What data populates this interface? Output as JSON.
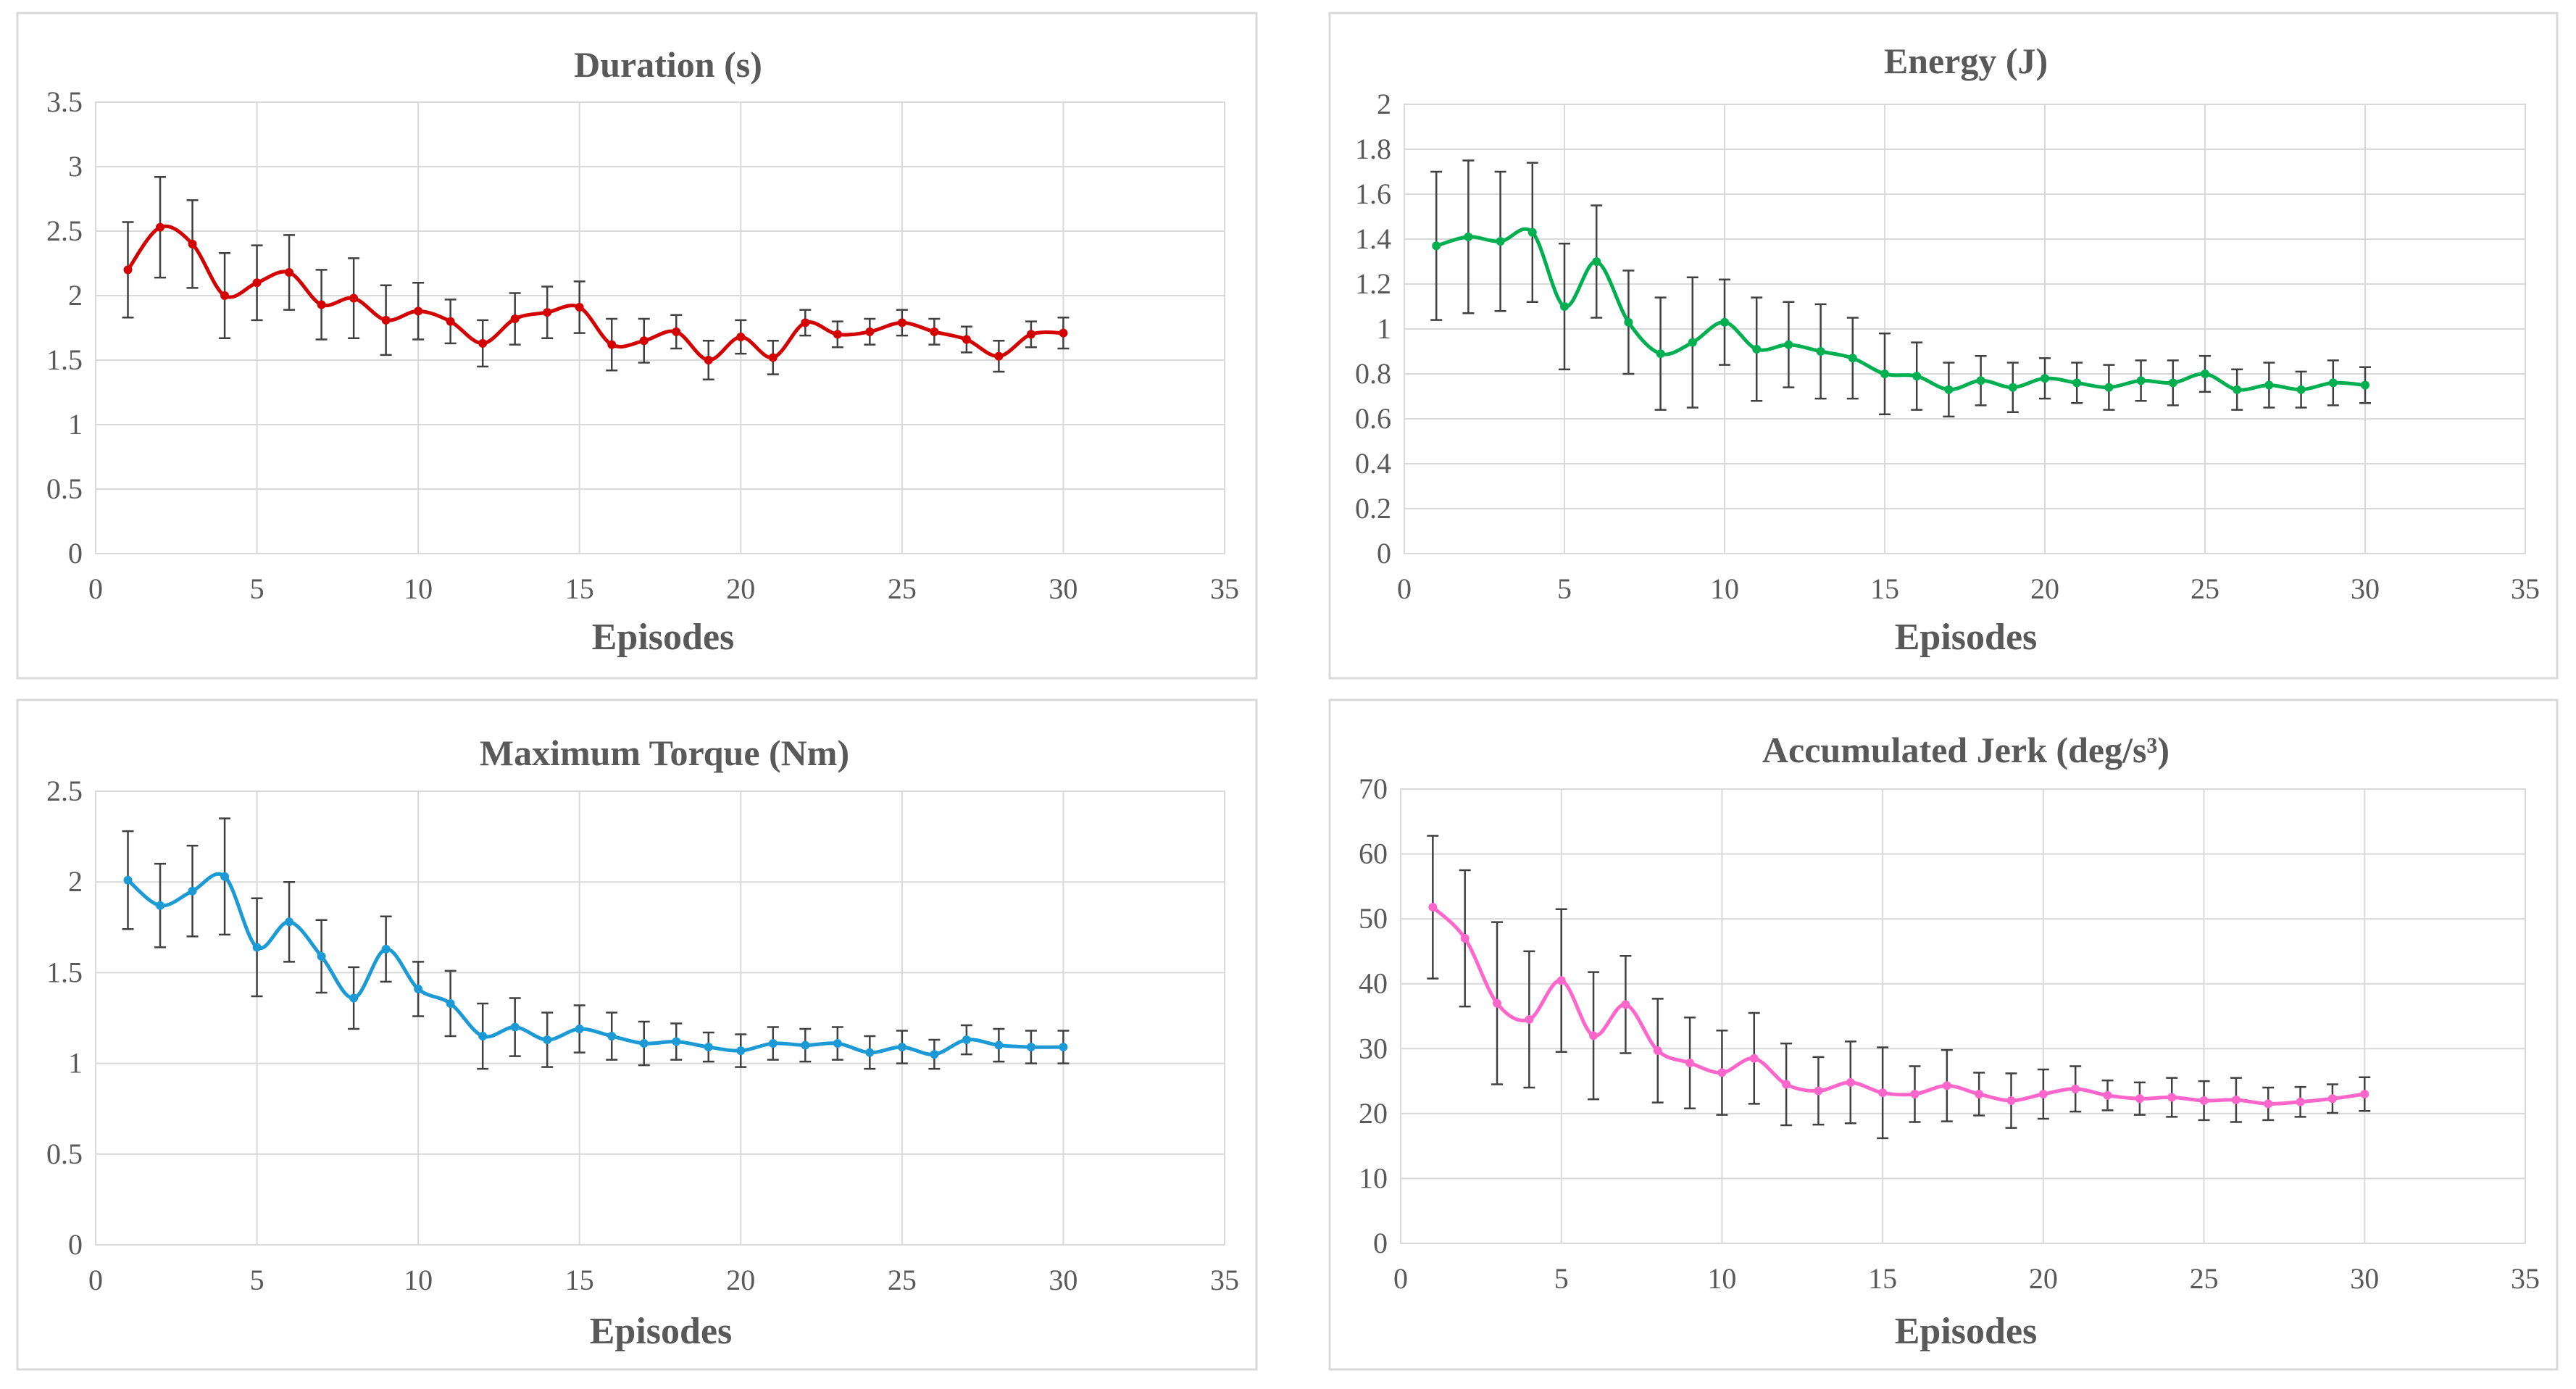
{
  "chart_data": [
    {
      "type": "line",
      "title": "Duration (s)",
      "xlabel": "Episodes",
      "ylabel": "",
      "xlim": [
        0,
        35
      ],
      "ylim": [
        0,
        3.5
      ],
      "xticks": [
        0,
        5,
        10,
        15,
        20,
        25,
        30,
        35
      ],
      "yticks": [
        0,
        0.5,
        1,
        1.5,
        2,
        2.5,
        3,
        3.5
      ],
      "color": "#d40000",
      "grid": true,
      "x": [
        1,
        2,
        3,
        4,
        5,
        6,
        7,
        8,
        9,
        10,
        11,
        12,
        13,
        14,
        15,
        16,
        17,
        18,
        19,
        20,
        21,
        22,
        23,
        24,
        25,
        26,
        27,
        28,
        29,
        30
      ],
      "values": [
        2.2,
        2.53,
        2.4,
        2.0,
        2.1,
        2.18,
        1.93,
        1.98,
        1.81,
        1.88,
        1.8,
        1.63,
        1.82,
        1.87,
        1.91,
        1.62,
        1.65,
        1.72,
        1.5,
        1.68,
        1.52,
        1.79,
        1.7,
        1.72,
        1.79,
        1.72,
        1.66,
        1.53,
        1.7,
        1.71
      ],
      "errors": [
        0.37,
        0.39,
        0.34,
        0.33,
        0.29,
        0.29,
        0.27,
        0.31,
        0.27,
        0.22,
        0.17,
        0.18,
        0.2,
        0.2,
        0.2,
        0.2,
        0.17,
        0.13,
        0.15,
        0.13,
        0.13,
        0.1,
        0.1,
        0.1,
        0.1,
        0.1,
        0.1,
        0.12,
        0.1,
        0.12
      ]
    },
    {
      "type": "line",
      "title": "Energy (J)",
      "xlabel": "Episodes",
      "ylabel": "",
      "xlim": [
        0,
        35
      ],
      "ylim": [
        0,
        2
      ],
      "xticks": [
        0,
        5,
        10,
        15,
        20,
        25,
        30,
        35
      ],
      "yticks": [
        0,
        0.2,
        0.4,
        0.6,
        0.8,
        1,
        1.2,
        1.4,
        1.6,
        1.8,
        2
      ],
      "color": "#00b050",
      "grid": true,
      "x": [
        1,
        2,
        3,
        4,
        5,
        6,
        7,
        8,
        9,
        10,
        11,
        12,
        13,
        14,
        15,
        16,
        17,
        18,
        19,
        20,
        21,
        22,
        23,
        24,
        25,
        26,
        27,
        28,
        29,
        30
      ],
      "values": [
        1.37,
        1.41,
        1.39,
        1.43,
        1.1,
        1.3,
        1.03,
        0.89,
        0.94,
        1.03,
        0.91,
        0.93,
        0.9,
        0.87,
        0.8,
        0.79,
        0.73,
        0.77,
        0.74,
        0.78,
        0.76,
        0.74,
        0.77,
        0.76,
        0.8,
        0.73,
        0.75,
        0.73,
        0.76,
        0.75
      ],
      "errors": [
        0.33,
        0.34,
        0.31,
        0.31,
        0.28,
        0.25,
        0.23,
        0.25,
        0.29,
        0.19,
        0.23,
        0.19,
        0.21,
        0.18,
        0.18,
        0.15,
        0.12,
        0.11,
        0.11,
        0.09,
        0.09,
        0.1,
        0.09,
        0.1,
        0.08,
        0.09,
        0.1,
        0.08,
        0.1,
        0.08
      ]
    },
    {
      "type": "line",
      "title": "Maximum Torque (Nm)",
      "xlabel": "Episodes",
      "ylabel": "",
      "xlim": [
        0,
        35
      ],
      "ylim": [
        0,
        2.5
      ],
      "xticks": [
        0,
        5,
        10,
        15,
        20,
        25,
        30,
        35
      ],
      "yticks": [
        0,
        0.5,
        1,
        1.5,
        2,
        2.5
      ],
      "color": "#1b9ad6",
      "grid": true,
      "x": [
        1,
        2,
        3,
        4,
        5,
        6,
        7,
        8,
        9,
        10,
        11,
        12,
        13,
        14,
        15,
        16,
        17,
        18,
        19,
        20,
        21,
        22,
        23,
        24,
        25,
        26,
        27,
        28,
        29,
        30
      ],
      "values": [
        2.01,
        1.87,
        1.95,
        2.03,
        1.64,
        1.78,
        1.59,
        1.36,
        1.63,
        1.41,
        1.33,
        1.15,
        1.2,
        1.13,
        1.19,
        1.15,
        1.11,
        1.12,
        1.09,
        1.07,
        1.11,
        1.1,
        1.11,
        1.06,
        1.09,
        1.05,
        1.13,
        1.1,
        1.09,
        1.09
      ],
      "errors": [
        0.27,
        0.23,
        0.25,
        0.32,
        0.27,
        0.22,
        0.2,
        0.17,
        0.18,
        0.15,
        0.18,
        0.18,
        0.16,
        0.15,
        0.13,
        0.13,
        0.12,
        0.1,
        0.08,
        0.09,
        0.09,
        0.09,
        0.09,
        0.09,
        0.09,
        0.08,
        0.08,
        0.09,
        0.09,
        0.09
      ]
    },
    {
      "type": "line",
      "title": "Accumulated Jerk (deg/s³)",
      "xlabel": "Episodes",
      "ylabel": "",
      "xlim": [
        0,
        35
      ],
      "ylim": [
        0,
        70
      ],
      "xticks": [
        0,
        5,
        10,
        15,
        20,
        25,
        30,
        35
      ],
      "yticks": [
        0,
        10,
        20,
        30,
        40,
        50,
        60,
        70
      ],
      "color": "#ff66cc",
      "grid": true,
      "x": [
        1,
        2,
        3,
        4,
        5,
        6,
        7,
        8,
        9,
        10,
        11,
        12,
        13,
        14,
        15,
        16,
        17,
        18,
        19,
        20,
        21,
        22,
        23,
        24,
        25,
        26,
        27,
        28,
        29,
        30
      ],
      "values": [
        51.8,
        47.0,
        37.0,
        34.5,
        40.5,
        32.0,
        36.8,
        29.7,
        27.8,
        26.3,
        28.5,
        24.5,
        23.5,
        24.8,
        23.2,
        23.0,
        24.3,
        23.0,
        22.0,
        23.0,
        23.8,
        22.8,
        22.3,
        22.5,
        22.0,
        22.1,
        21.5,
        21.8,
        22.3,
        23.0
      ],
      "errors": [
        11.0,
        10.5,
        12.5,
        10.5,
        11.0,
        9.8,
        7.5,
        8.0,
        7.0,
        6.5,
        7.0,
        6.3,
        5.2,
        6.3,
        7.0,
        4.3,
        5.5,
        3.3,
        4.2,
        3.8,
        3.5,
        2.3,
        2.5,
        3.0,
        3.0,
        3.4,
        2.5,
        2.3,
        2.2,
        2.6
      ]
    }
  ]
}
